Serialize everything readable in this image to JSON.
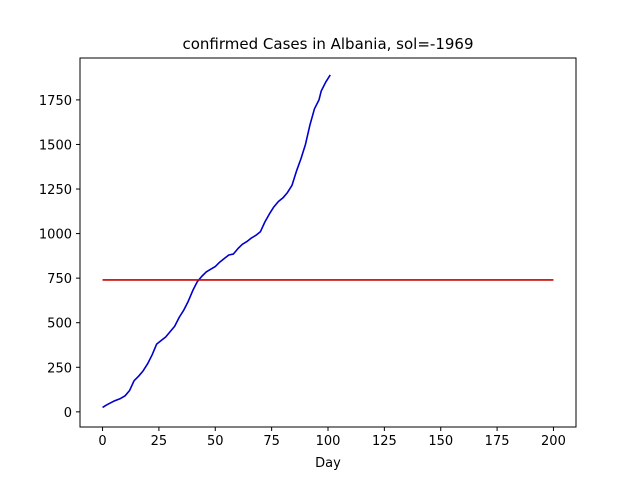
{
  "chart_data": {
    "type": "line",
    "title": "confirmed Cases in Albania, sol=-1969",
    "xlabel": "Day",
    "ylabel": "",
    "xlim": [
      -10,
      210
    ],
    "ylim": [
      -85,
      1985
    ],
    "xticks": [
      0,
      25,
      50,
      75,
      100,
      125,
      150,
      175,
      200
    ],
    "yticks": [
      0,
      250,
      500,
      750,
      1000,
      1250,
      1500,
      1750
    ],
    "grid": false,
    "series": [
      {
        "color": "#0000cc",
        "x": [
          0,
          2,
          5,
          8,
          10,
          12,
          14,
          16,
          18,
          20,
          22,
          24,
          26,
          28,
          30,
          32,
          34,
          36,
          38,
          40,
          42,
          44,
          46,
          48,
          50,
          52,
          54,
          56,
          58,
          60,
          62,
          64,
          66,
          68,
          70,
          72,
          74,
          76,
          78,
          80,
          82,
          84,
          86,
          88,
          90,
          92,
          94,
          96,
          97,
          99,
          101
        ],
        "y": [
          25,
          40,
          60,
          75,
          90,
          120,
          175,
          200,
          230,
          270,
          320,
          380,
          400,
          420,
          450,
          480,
          530,
          570,
          620,
          680,
          730,
          760,
          785,
          800,
          815,
          840,
          860,
          880,
          885,
          915,
          940,
          955,
          975,
          990,
          1010,
          1065,
          1110,
          1150,
          1180,
          1200,
          1230,
          1270,
          1350,
          1420,
          1500,
          1610,
          1700,
          1750,
          1800,
          1850,
          1890
        ]
      },
      {
        "color": "#cc0000",
        "x": [
          0,
          200
        ],
        "y": [
          740,
          740
        ]
      }
    ]
  }
}
